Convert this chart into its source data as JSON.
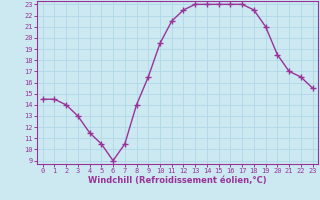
{
  "x": [
    0,
    1,
    2,
    3,
    4,
    5,
    6,
    7,
    8,
    9,
    10,
    11,
    12,
    13,
    14,
    15,
    16,
    17,
    18,
    19,
    20,
    21,
    22,
    23
  ],
  "y": [
    14.5,
    14.5,
    14.0,
    13.0,
    11.5,
    10.5,
    9.0,
    10.5,
    14.0,
    16.5,
    19.5,
    21.5,
    22.5,
    23.0,
    23.0,
    23.0,
    23.0,
    23.0,
    22.5,
    21.0,
    18.5,
    17.0,
    16.5,
    15.5
  ],
  "line_color": "#993399",
  "marker": "+",
  "markersize": 4,
  "linewidth": 1.0,
  "xlabel": "Windchill (Refroidissement éolien,°C)",
  "xlabel_fontsize": 6,
  "bg_color": "#cce8f0",
  "grid_color": "#b0d8e8",
  "ylim": [
    9,
    23
  ],
  "xlim": [
    0,
    23
  ],
  "yticks": [
    9,
    10,
    11,
    12,
    13,
    14,
    15,
    16,
    17,
    18,
    19,
    20,
    21,
    22,
    23
  ],
  "xticks": [
    0,
    1,
    2,
    3,
    4,
    5,
    6,
    7,
    8,
    9,
    10,
    11,
    12,
    13,
    14,
    15,
    16,
    17,
    18,
    19,
    20,
    21,
    22,
    23
  ],
  "tick_color": "#993399",
  "tick_fontsize": 5.0,
  "axis_color": "#993399"
}
